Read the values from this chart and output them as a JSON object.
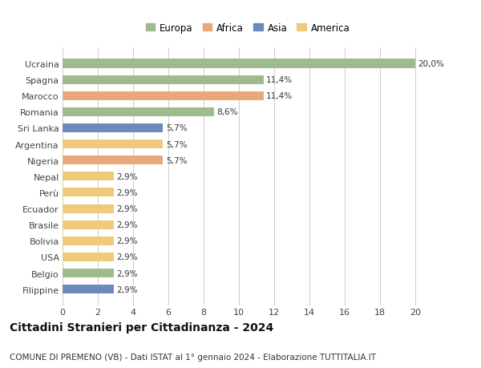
{
  "countries": [
    "Filippine",
    "Belgio",
    "USA",
    "Bolivia",
    "Brasile",
    "Ecuador",
    "Perù",
    "Nepal",
    "Nigeria",
    "Argentina",
    "Sri Lanka",
    "Romania",
    "Marocco",
    "Spagna",
    "Ucraina"
  ],
  "values": [
    2.9,
    2.9,
    2.9,
    2.9,
    2.9,
    2.9,
    2.9,
    2.9,
    5.7,
    5.7,
    5.7,
    8.6,
    11.4,
    11.4,
    20.0
  ],
  "labels": [
    "2,9%",
    "2,9%",
    "2,9%",
    "2,9%",
    "2,9%",
    "2,9%",
    "2,9%",
    "2,9%",
    "5,7%",
    "5,7%",
    "5,7%",
    "8,6%",
    "11,4%",
    "11,4%",
    "20,0%"
  ],
  "colors": [
    "#6b8cba",
    "#9ebb8e",
    "#f0c97a",
    "#f0c97a",
    "#f0c97a",
    "#f0c97a",
    "#f0c97a",
    "#f0c97a",
    "#e8a87c",
    "#f0c97a",
    "#6b8cba",
    "#9ebb8e",
    "#e8a87c",
    "#9ebb8e",
    "#9ebb8e"
  ],
  "legend_labels": [
    "Europa",
    "Africa",
    "Asia",
    "America"
  ],
  "legend_colors": [
    "#9ebb8e",
    "#e8a87c",
    "#6b8cba",
    "#f0c97a"
  ],
  "title1": "Cittadini Stranieri per Cittadinanza - 2024",
  "title2": "COMUNE DI PREMENO (VB) - Dati ISTAT al 1° gennaio 2024 - Elaborazione TUTTITALIA.IT",
  "xlim": [
    0,
    21
  ],
  "xticks": [
    0,
    2,
    4,
    6,
    8,
    10,
    12,
    14,
    16,
    18,
    20
  ],
  "background_color": "#ffffff",
  "grid_color": "#cccccc",
  "bar_label_fontsize": 7.5,
  "ytick_fontsize": 8,
  "xtick_fontsize": 8,
  "legend_fontsize": 8.5,
  "title1_fontsize": 10,
  "title2_fontsize": 7.5,
  "bar_height": 0.55
}
